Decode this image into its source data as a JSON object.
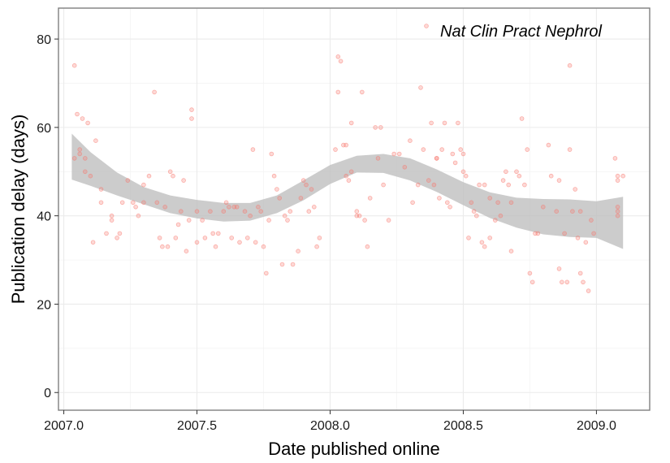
{
  "chart_data": {
    "type": "scatter",
    "title": "",
    "xlabel": "Date published online",
    "ylabel": "Publication delay (days)",
    "xlim": [
      2006.98,
      2009.2
    ],
    "ylim": [
      -4,
      87
    ],
    "xticks": [
      2007.0,
      2007.5,
      2008.0,
      2008.5,
      2009.0
    ],
    "xtick_labels": [
      "2007.0",
      "2007.5",
      "2008.0",
      "2008.5",
      "2009.0"
    ],
    "yticks": [
      0,
      20,
      40,
      60,
      80
    ],
    "ytick_labels": [
      "0",
      "20",
      "40",
      "60",
      "80"
    ],
    "grid": true,
    "legend_position": "top-right",
    "point_color": "#f8766d",
    "band_color": "#bfbfbf",
    "series": [
      {
        "name": "Nat Clin Pract Nephrol",
        "points": [
          [
            2007.04,
            74
          ],
          [
            2007.04,
            53
          ],
          [
            2007.05,
            63
          ],
          [
            2007.06,
            55
          ],
          [
            2007.06,
            54
          ],
          [
            2007.07,
            62
          ],
          [
            2007.08,
            53
          ],
          [
            2007.08,
            50
          ],
          [
            2007.09,
            61
          ],
          [
            2007.1,
            49
          ],
          [
            2007.11,
            34
          ],
          [
            2007.12,
            57
          ],
          [
            2007.14,
            46
          ],
          [
            2007.14,
            43
          ],
          [
            2007.16,
            36
          ],
          [
            2007.18,
            40
          ],
          [
            2007.18,
            39
          ],
          [
            2007.2,
            35
          ],
          [
            2007.21,
            36
          ],
          [
            2007.22,
            43
          ],
          [
            2007.24,
            48
          ],
          [
            2007.26,
            43
          ],
          [
            2007.27,
            42
          ],
          [
            2007.28,
            40
          ],
          [
            2007.3,
            47
          ],
          [
            2007.3,
            43
          ],
          [
            2007.32,
            49
          ],
          [
            2007.34,
            68
          ],
          [
            2007.35,
            43
          ],
          [
            2007.36,
            35
          ],
          [
            2007.37,
            33
          ],
          [
            2007.38,
            42
          ],
          [
            2007.39,
            33
          ],
          [
            2007.4,
            50
          ],
          [
            2007.41,
            49
          ],
          [
            2007.42,
            35
          ],
          [
            2007.43,
            38
          ],
          [
            2007.44,
            41
          ],
          [
            2007.45,
            48
          ],
          [
            2007.46,
            32
          ],
          [
            2007.47,
            39
          ],
          [
            2007.48,
            64
          ],
          [
            2007.48,
            62
          ],
          [
            2007.5,
            34
          ],
          [
            2007.5,
            41
          ],
          [
            2007.52,
            39
          ],
          [
            2007.53,
            35
          ],
          [
            2007.55,
            41
          ],
          [
            2007.56,
            36
          ],
          [
            2007.57,
            33
          ],
          [
            2007.58,
            36
          ],
          [
            2007.6,
            41
          ],
          [
            2007.61,
            43
          ],
          [
            2007.62,
            42
          ],
          [
            2007.63,
            35
          ],
          [
            2007.64,
            42
          ],
          [
            2007.65,
            42
          ],
          [
            2007.66,
            34
          ],
          [
            2007.68,
            41
          ],
          [
            2007.69,
            35
          ],
          [
            2007.7,
            40
          ],
          [
            2007.71,
            55
          ],
          [
            2007.72,
            34
          ],
          [
            2007.73,
            42
          ],
          [
            2007.74,
            41
          ],
          [
            2007.75,
            33
          ],
          [
            2007.76,
            27
          ],
          [
            2007.77,
            39
          ],
          [
            2007.78,
            54
          ],
          [
            2007.79,
            49
          ],
          [
            2007.8,
            46
          ],
          [
            2007.81,
            44
          ],
          [
            2007.82,
            29
          ],
          [
            2007.83,
            40
          ],
          [
            2007.84,
            39
          ],
          [
            2007.85,
            41
          ],
          [
            2007.86,
            29
          ],
          [
            2007.88,
            32
          ],
          [
            2007.89,
            44
          ],
          [
            2007.9,
            48
          ],
          [
            2007.91,
            47
          ],
          [
            2007.92,
            41
          ],
          [
            2007.93,
            46
          ],
          [
            2007.94,
            42
          ],
          [
            2007.95,
            33
          ],
          [
            2007.96,
            35
          ],
          [
            2008.02,
            55
          ],
          [
            2008.03,
            76
          ],
          [
            2008.03,
            68
          ],
          [
            2008.04,
            75
          ],
          [
            2008.05,
            56
          ],
          [
            2008.06,
            49
          ],
          [
            2008.06,
            56
          ],
          [
            2008.07,
            48
          ],
          [
            2008.08,
            50
          ],
          [
            2008.08,
            61
          ],
          [
            2008.1,
            40
          ],
          [
            2008.1,
            41
          ],
          [
            2008.11,
            40
          ],
          [
            2008.12,
            68
          ],
          [
            2008.13,
            39
          ],
          [
            2008.14,
            33
          ],
          [
            2008.15,
            44
          ],
          [
            2008.17,
            60
          ],
          [
            2008.18,
            53
          ],
          [
            2008.19,
            60
          ],
          [
            2008.2,
            47
          ],
          [
            2008.22,
            39
          ],
          [
            2008.24,
            54
          ],
          [
            2008.26,
            54
          ],
          [
            2008.28,
            51
          ],
          [
            2008.3,
            57
          ],
          [
            2008.31,
            43
          ],
          [
            2008.33,
            47
          ],
          [
            2008.34,
            69
          ],
          [
            2008.35,
            55
          ],
          [
            2008.37,
            48
          ],
          [
            2008.38,
            61
          ],
          [
            2008.39,
            47
          ],
          [
            2008.4,
            53
          ],
          [
            2008.4,
            53
          ],
          [
            2008.41,
            44
          ],
          [
            2008.42,
            55
          ],
          [
            2008.43,
            61
          ],
          [
            2008.44,
            43
          ],
          [
            2008.45,
            42
          ],
          [
            2008.46,
            54
          ],
          [
            2008.47,
            52
          ],
          [
            2008.48,
            61
          ],
          [
            2008.49,
            55
          ],
          [
            2008.5,
            54
          ],
          [
            2008.5,
            50
          ],
          [
            2008.51,
            49
          ],
          [
            2008.52,
            35
          ],
          [
            2008.53,
            43
          ],
          [
            2008.54,
            41
          ],
          [
            2008.55,
            40
          ],
          [
            2008.56,
            47
          ],
          [
            2008.57,
            34
          ],
          [
            2008.58,
            47
          ],
          [
            2008.58,
            33
          ],
          [
            2008.6,
            35
          ],
          [
            2008.6,
            44
          ],
          [
            2008.62,
            39
          ],
          [
            2008.63,
            43
          ],
          [
            2008.64,
            40
          ],
          [
            2008.65,
            48
          ],
          [
            2008.66,
            50
          ],
          [
            2008.67,
            47
          ],
          [
            2008.68,
            32
          ],
          [
            2008.68,
            43
          ],
          [
            2008.7,
            50
          ],
          [
            2008.71,
            49
          ],
          [
            2008.72,
            62
          ],
          [
            2008.73,
            47
          ],
          [
            2008.74,
            55
          ],
          [
            2008.75,
            27
          ],
          [
            2008.76,
            25
          ],
          [
            2008.77,
            36
          ],
          [
            2008.78,
            36
          ],
          [
            2008.8,
            42
          ],
          [
            2008.82,
            56
          ],
          [
            2008.83,
            49
          ],
          [
            2008.85,
            41
          ],
          [
            2008.86,
            48
          ],
          [
            2008.86,
            28
          ],
          [
            2008.87,
            25
          ],
          [
            2008.88,
            36
          ],
          [
            2008.89,
            25
          ],
          [
            2008.9,
            74
          ],
          [
            2008.9,
            55
          ],
          [
            2008.91,
            41
          ],
          [
            2008.92,
            46
          ],
          [
            2008.93,
            35
          ],
          [
            2008.94,
            41
          ],
          [
            2008.94,
            27
          ],
          [
            2008.95,
            25
          ],
          [
            2008.96,
            34
          ],
          [
            2008.97,
            23
          ],
          [
            2008.98,
            39
          ],
          [
            2008.99,
            36
          ],
          [
            2009.07,
            53
          ],
          [
            2009.08,
            49
          ],
          [
            2009.08,
            48
          ],
          [
            2009.08,
            42
          ],
          [
            2009.08,
            41
          ],
          [
            2009.08,
            40
          ],
          [
            2009.1,
            49
          ]
        ]
      }
    ],
    "smooth": {
      "method": "loess",
      "x": [
        2007.03,
        2007.1,
        2007.2,
        2007.3,
        2007.4,
        2007.5,
        2007.6,
        2007.7,
        2007.8,
        2007.9,
        2008.0,
        2008.1,
        2008.2,
        2008.3,
        2008.4,
        2008.5,
        2008.6,
        2008.7,
        2008.8,
        2008.9,
        2009.0,
        2009.1
      ],
      "lower": [
        48.2,
        46.8,
        44.6,
        42.6,
        40.6,
        39.4,
        38.7,
        38.9,
        40.6,
        43.5,
        47.2,
        49.8,
        49.7,
        48.0,
        45.4,
        42.4,
        39.5,
        37.3,
        35.8,
        35.2,
        35.0,
        32.5
      ],
      "upper": [
        58.6,
        54.4,
        49.8,
        46.5,
        44.6,
        43.6,
        42.9,
        42.9,
        44.6,
        48.0,
        51.5,
        53.6,
        54.0,
        53.0,
        50.5,
        47.6,
        45.3,
        44.1,
        43.8,
        43.7,
        43.3,
        44.3
      ]
    }
  }
}
